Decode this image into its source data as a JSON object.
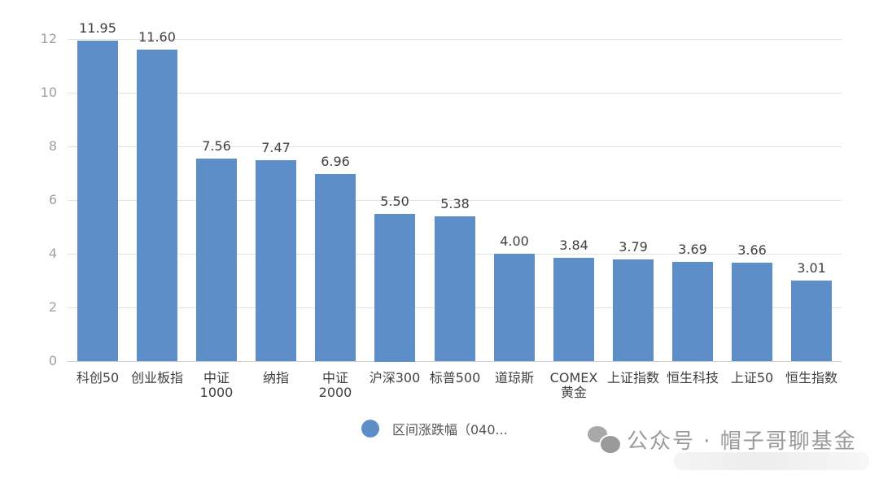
{
  "chart_data": {
    "type": "bar",
    "title": "",
    "xlabel": "",
    "ylabel": "",
    "ylim": [
      0,
      12
    ],
    "yticks": [
      0,
      2,
      4,
      6,
      8,
      10,
      12
    ],
    "grid": true,
    "legend_position": "bottom",
    "categories": [
      "科创50",
      "创业板指",
      "中证\n1000",
      "纳指",
      "中证\n2000",
      "沪深300",
      "标普500",
      "道琼斯",
      "COMEX\n黄金",
      "上证指数",
      "恒生科技",
      "上证50",
      "恒生指数"
    ],
    "series": [
      {
        "name": "区间涨跌幅（040...",
        "color": "#5e8ec8",
        "values": [
          11.95,
          11.6,
          7.56,
          7.47,
          6.96,
          5.5,
          5.38,
          4.0,
          3.84,
          3.79,
          3.69,
          3.66,
          3.01
        ],
        "labels": [
          "11.95",
          "11.60",
          "7.56",
          "7.47",
          "6.96",
          "5.50",
          "5.38",
          "4.00",
          "3.84",
          "3.79",
          "3.69",
          "3.66",
          "3.01"
        ]
      }
    ]
  },
  "legend": {
    "label": "区间涨跌幅（040...",
    "color": "#5e8ec8"
  },
  "watermark": {
    "icon": "wechat-icon",
    "text": "公众号 · 帽子哥聊基金"
  }
}
